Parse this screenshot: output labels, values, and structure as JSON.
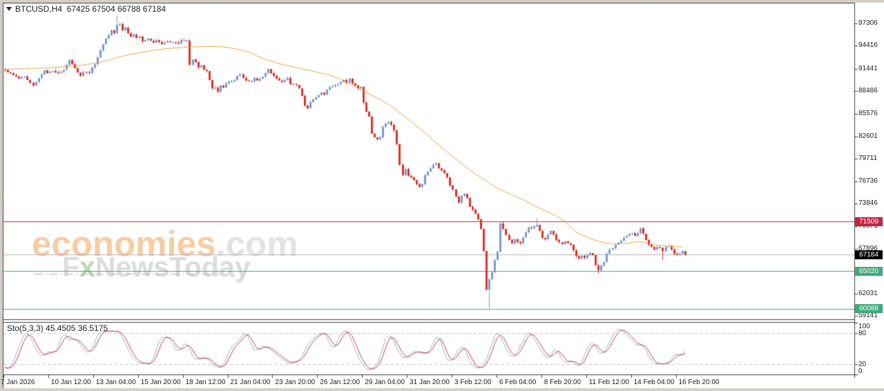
{
  "window": {
    "title_text": "BTCUSD,H4  67425 67504 66788 67184"
  },
  "indicator": {
    "label_text": "Sto(5,3,3) 45.4505 36.5175"
  },
  "watermark": {
    "brand": "economies",
    "brand_suffix": ".com",
    "tagline_prefix": "F",
    "tagline_x": "x",
    "tagline_rest": "NewsToday"
  },
  "price_axis": {
    "labels": [
      97306,
      94416,
      91441,
      88486,
      85576,
      82601,
      79711,
      76736,
      73846,
      70871,
      67896,
      62031,
      59141
    ],
    "tags": [
      {
        "price": 71509,
        "color": "#C72243"
      },
      {
        "price": 67184,
        "color": "#000000"
      },
      {
        "price": 65020,
        "color": "#3EA97B"
      },
      {
        "price": 60088,
        "color": "#3EA97B"
      }
    ]
  },
  "time_axis": {
    "labels": [
      "7 Jan 2026",
      "10 Jan 12:00",
      "13 Jan 04:00",
      "15 Jan 20:00",
      "18 Jan 12:00",
      "21 Jan 04:00",
      "23 Jan 20:00",
      "26 Jan 12:00",
      "29 Jan 04:00",
      "31 Jan 20:00",
      "3 Feb 12:00",
      "6 Feb 04:00",
      "8 Feb 20:00",
      "11 Feb 12:00",
      "14 Feb 04:00",
      "16 Feb 20:00"
    ]
  },
  "sub_axis": {
    "labels": [
      100,
      80,
      20,
      0
    ]
  },
  "colors": {
    "window_edge": "#D4D0C8",
    "frame": "#3C3C3C",
    "up_candle": "#7A99D0",
    "down_candle": "#DD3229",
    "ma_line": "#E8A23C",
    "stoch_k": "#8FAFD2",
    "stoch_d": "#C23B48",
    "stoch_levels": "#C6C6C6",
    "current_price_line": "#B4B4B4",
    "resistance_line": "#C72243",
    "support_line": "#3EA97B",
    "axis_text": "#1b1b1b",
    "watermark_underline": "#B5B5B5"
  },
  "chart_data": {
    "type": "candlestick",
    "symbol": "BTCUSD",
    "timeframe": "H4",
    "current_bar": {
      "open": 67425,
      "high": 67504,
      "low": 66788,
      "close": 67184
    },
    "ylim": [
      58730,
      99950
    ],
    "candle_count": 244,
    "close_path": [
      [
        0,
        91260
      ],
      [
        2,
        90810
      ],
      [
        5,
        90180
      ],
      [
        7,
        90450
      ],
      [
        9,
        89540
      ],
      [
        10,
        89270
      ],
      [
        12,
        90180
      ],
      [
        14,
        91260
      ],
      [
        15,
        90900
      ],
      [
        17,
        91170
      ],
      [
        19,
        90810
      ],
      [
        21,
        91260
      ],
      [
        23,
        92620
      ],
      [
        25,
        91530
      ],
      [
        26,
        90900
      ],
      [
        27,
        90450
      ],
      [
        28,
        91080
      ],
      [
        30,
        90810
      ],
      [
        31,
        91530
      ],
      [
        32,
        91990
      ],
      [
        33,
        92890
      ],
      [
        34,
        93800
      ],
      [
        36,
        95340
      ],
      [
        37,
        95880
      ],
      [
        38,
        96520
      ],
      [
        39,
        96060
      ],
      [
        40,
        97150
      ],
      [
        41,
        97330
      ],
      [
        42,
        96520
      ],
      [
        43,
        96790
      ],
      [
        44,
        96060
      ],
      [
        45,
        95610
      ],
      [
        46,
        95880
      ],
      [
        47,
        95430
      ],
      [
        48,
        95610
      ],
      [
        49,
        94980
      ],
      [
        51,
        95340
      ],
      [
        52,
        95160
      ],
      [
        53,
        94890
      ],
      [
        54,
        95160
      ],
      [
        56,
        94710
      ],
      [
        58,
        94980
      ],
      [
        60,
        94890
      ],
      [
        62,
        94710
      ],
      [
        63,
        95160
      ],
      [
        65,
        95070
      ],
      [
        66,
        91990
      ],
      [
        67,
        92620
      ],
      [
        68,
        92260
      ],
      [
        69,
        91530
      ],
      [
        70,
        91800
      ],
      [
        71,
        91260
      ],
      [
        72,
        91080
      ],
      [
        73,
        89900
      ],
      [
        74,
        88820
      ],
      [
        75,
        89000
      ],
      [
        76,
        88360
      ],
      [
        77,
        89270
      ],
      [
        78,
        89000
      ],
      [
        79,
        89540
      ],
      [
        80,
        89720
      ],
      [
        82,
        89900
      ],
      [
        83,
        90450
      ],
      [
        84,
        90630
      ],
      [
        85,
        90180
      ],
      [
        86,
        89900
      ],
      [
        88,
        89720
      ],
      [
        89,
        90180
      ],
      [
        90,
        89900
      ],
      [
        92,
        90450
      ],
      [
        94,
        91350
      ],
      [
        95,
        90810
      ],
      [
        97,
        90180
      ],
      [
        98,
        89900
      ],
      [
        99,
        89720
      ],
      [
        101,
        90180
      ],
      [
        102,
        89450
      ],
      [
        104,
        89270
      ],
      [
        105,
        88820
      ],
      [
        106,
        87910
      ],
      [
        107,
        86560
      ],
      [
        108,
        86290
      ],
      [
        109,
        87010
      ],
      [
        110,
        87460
      ],
      [
        111,
        87730
      ],
      [
        113,
        88360
      ],
      [
        114,
        88090
      ],
      [
        115,
        88630
      ],
      [
        116,
        89000
      ],
      [
        118,
        89270
      ],
      [
        119,
        89360
      ],
      [
        120,
        89720
      ],
      [
        121,
        89900
      ],
      [
        122,
        89540
      ],
      [
        123,
        90180
      ],
      [
        124,
        89540
      ],
      [
        125,
        89270
      ],
      [
        126,
        88820
      ],
      [
        127,
        89000
      ],
      [
        128,
        87010
      ],
      [
        129,
        85840
      ],
      [
        130,
        85210
      ],
      [
        131,
        82950
      ],
      [
        132,
        82500
      ],
      [
        133,
        82230
      ],
      [
        134,
        82500
      ],
      [
        135,
        83860
      ],
      [
        136,
        84310
      ],
      [
        137,
        84490
      ],
      [
        138,
        84130
      ],
      [
        139,
        83400
      ],
      [
        140,
        81600
      ],
      [
        141,
        78880
      ],
      [
        142,
        77530
      ],
      [
        143,
        78430
      ],
      [
        144,
        77530
      ],
      [
        145,
        77250
      ],
      [
        146,
        76890
      ],
      [
        147,
        76350
      ],
      [
        148,
        75980
      ],
      [
        149,
        76350
      ],
      [
        150,
        77530
      ],
      [
        151,
        77980
      ],
      [
        152,
        78430
      ],
      [
        153,
        78880
      ],
      [
        154,
        79060
      ],
      [
        155,
        78430
      ],
      [
        156,
        78160
      ],
      [
        157,
        77800
      ],
      [
        158,
        77250
      ],
      [
        159,
        76160
      ],
      [
        160,
        75710
      ],
      [
        161,
        74810
      ],
      [
        162,
        73900
      ],
      [
        163,
        74810
      ],
      [
        164,
        75080
      ],
      [
        165,
        74540
      ],
      [
        166,
        73450
      ],
      [
        167,
        73000
      ],
      [
        168,
        72540
      ],
      [
        169,
        71820
      ],
      [
        170,
        70500
      ],
      [
        171,
        67570
      ],
      [
        172,
        62590
      ],
      [
        173,
        63900
      ],
      [
        174,
        64850
      ],
      [
        175,
        66500
      ],
      [
        176,
        67600
      ],
      [
        177,
        71200
      ],
      [
        178,
        70500
      ],
      [
        179,
        69700
      ],
      [
        180,
        69100
      ],
      [
        181,
        68600
      ],
      [
        182,
        69100
      ],
      [
        184,
        68610
      ],
      [
        185,
        69380
      ],
      [
        187,
        70730
      ],
      [
        188,
        70550
      ],
      [
        189,
        70910
      ],
      [
        190,
        71000
      ],
      [
        191,
        70280
      ],
      [
        192,
        69380
      ],
      [
        193,
        69100
      ],
      [
        194,
        69830
      ],
      [
        195,
        70280
      ],
      [
        196,
        69830
      ],
      [
        197,
        69100
      ],
      [
        198,
        68740
      ],
      [
        199,
        68470
      ],
      [
        200,
        68920
      ],
      [
        202,
        68470
      ],
      [
        204,
        66930
      ],
      [
        205,
        66660
      ],
      [
        206,
        66930
      ],
      [
        207,
        66660
      ],
      [
        208,
        67110
      ],
      [
        209,
        67290
      ],
      [
        210,
        67110
      ],
      [
        211,
        65750
      ],
      [
        212,
        65120
      ],
      [
        213,
        65750
      ],
      [
        214,
        66200
      ],
      [
        215,
        67290
      ],
      [
        216,
        67840
      ],
      [
        217,
        68020
      ],
      [
        218,
        68470
      ],
      [
        219,
        68740
      ],
      [
        220,
        68920
      ],
      [
        221,
        69380
      ],
      [
        222,
        69650
      ],
      [
        223,
        69830
      ],
      [
        224,
        70010
      ],
      [
        225,
        69650
      ],
      [
        226,
        70010
      ],
      [
        227,
        70550
      ],
      [
        228,
        69830
      ],
      [
        229,
        69100
      ],
      [
        230,
        68470
      ],
      [
        231,
        68200
      ],
      [
        232,
        67840
      ],
      [
        233,
        68200
      ],
      [
        234,
        68020
      ],
      [
        235,
        67570
      ],
      [
        236,
        68200
      ],
      [
        237,
        68200
      ],
      [
        238,
        67840
      ],
      [
        239,
        67290
      ],
      [
        240,
        67110
      ],
      [
        241,
        67290
      ],
      [
        242,
        67570
      ],
      [
        243,
        67184
      ]
    ],
    "special_wicks": [
      {
        "i": 40,
        "high": 98330
      },
      {
        "i": 173,
        "low": 60140
      },
      {
        "i": 190,
        "high": 71880
      },
      {
        "i": 212,
        "low": 64650
      },
      {
        "i": 235,
        "low": 66480
      }
    ],
    "ma_path": [
      [
        0,
        91350
      ],
      [
        15,
        91530
      ],
      [
        28,
        91890
      ],
      [
        36,
        92440
      ],
      [
        43,
        93160
      ],
      [
        51,
        93710
      ],
      [
        58,
        94070
      ],
      [
        65,
        94250
      ],
      [
        73,
        94340
      ],
      [
        78,
        94300
      ],
      [
        83,
        93980
      ],
      [
        88,
        93530
      ],
      [
        91,
        92890
      ],
      [
        97,
        92170
      ],
      [
        107,
        91350
      ],
      [
        117,
        90540
      ],
      [
        127,
        88730
      ],
      [
        137,
        86830
      ],
      [
        147,
        84030
      ],
      [
        157,
        80850
      ],
      [
        167,
        77980
      ],
      [
        176,
        75800
      ],
      [
        184,
        74530
      ],
      [
        191,
        73230
      ],
      [
        199,
        71870
      ],
      [
        204,
        70060
      ],
      [
        211,
        68990
      ],
      [
        217,
        68540
      ],
      [
        222,
        68630
      ],
      [
        227,
        68900
      ],
      [
        232,
        68450
      ],
      [
        237,
        68270
      ],
      [
        242,
        68180
      ]
    ],
    "levels": [
      {
        "price": 71509,
        "color": "#C72243",
        "role": "resistance"
      },
      {
        "price": 67184,
        "color": "#B4B4B4",
        "role": "current-price"
      },
      {
        "price": 65020,
        "color": "#3EA97B",
        "role": "support"
      },
      {
        "price": 60088,
        "color": "#3EA97B",
        "role": "support"
      }
    ],
    "stochastic": {
      "label": "Sto(5,3,3)",
      "k_last": 45.4505,
      "d_last": 36.5175,
      "levels": [
        80,
        20
      ],
      "ylim": [
        0,
        100
      ],
      "k_path": [
        [
          0,
          15
        ],
        [
          2,
          10
        ],
        [
          7,
          83
        ],
        [
          9,
          77
        ],
        [
          12,
          38
        ],
        [
          14,
          36
        ],
        [
          16,
          48
        ],
        [
          18,
          38
        ],
        [
          21,
          86
        ],
        [
          23,
          62
        ],
        [
          25,
          71
        ],
        [
          26,
          64
        ],
        [
          29,
          41
        ],
        [
          31,
          44
        ],
        [
          34,
          87
        ],
        [
          35,
          85
        ],
        [
          38,
          82
        ],
        [
          41,
          84
        ],
        [
          45,
          38
        ],
        [
          47,
          22
        ],
        [
          51,
          21
        ],
        [
          53,
          24
        ],
        [
          55,
          70
        ],
        [
          58,
          73
        ],
        [
          59,
          72
        ],
        [
          61,
          46
        ],
        [
          62,
          41
        ],
        [
          65,
          67
        ],
        [
          67,
          31
        ],
        [
          69,
          29
        ],
        [
          71,
          35
        ],
        [
          73,
          30
        ],
        [
          74,
          18
        ],
        [
          77,
          13
        ],
        [
          78,
          14
        ],
        [
          79,
          27
        ],
        [
          81,
          57
        ],
        [
          83,
          60
        ],
        [
          86,
          86
        ],
        [
          89,
          44
        ],
        [
          90,
          42
        ],
        [
          91,
          55
        ],
        [
          94,
          52
        ],
        [
          97,
          40
        ],
        [
          101,
          24
        ],
        [
          102,
          18
        ],
        [
          104,
          28
        ],
        [
          105,
          22
        ],
        [
          108,
          57
        ],
        [
          112,
          80
        ],
        [
          115,
          78
        ],
        [
          117,
          42
        ],
        [
          121,
          88
        ],
        [
          123,
          80
        ],
        [
          126,
          33
        ],
        [
          129,
          10
        ],
        [
          130,
          5
        ],
        [
          134,
          25
        ],
        [
          135,
          57
        ],
        [
          137,
          81
        ],
        [
          140,
          55
        ],
        [
          141,
          38
        ],
        [
          143,
          29
        ],
        [
          145,
          41
        ],
        [
          147,
          44
        ],
        [
          151,
          38
        ],
        [
          155,
          84
        ],
        [
          156,
          54
        ],
        [
          158,
          25
        ],
        [
          159,
          21
        ],
        [
          163,
          57
        ],
        [
          164,
          55
        ],
        [
          167,
          15
        ],
        [
          169,
          13
        ],
        [
          171,
          14
        ],
        [
          176,
          90
        ],
        [
          178,
          60
        ],
        [
          181,
          34
        ],
        [
          182,
          30
        ],
        [
          187,
          87
        ],
        [
          190,
          60
        ],
        [
          193,
          36
        ],
        [
          194,
          24
        ],
        [
          197,
          54
        ],
        [
          199,
          30
        ],
        [
          200,
          19
        ],
        [
          203,
          31
        ],
        [
          205,
          8
        ],
        [
          208,
          52
        ],
        [
          210,
          65
        ],
        [
          213,
          33
        ],
        [
          219,
          90
        ],
        [
          221,
          85
        ],
        [
          226,
          54
        ],
        [
          228,
          60
        ],
        [
          231,
          25
        ],
        [
          232,
          21
        ],
        [
          234,
          20
        ],
        [
          237,
          22
        ],
        [
          239,
          35
        ],
        [
          240,
          46
        ],
        [
          241,
          40
        ],
        [
          242,
          27
        ],
        [
          243,
          45.45
        ]
      ]
    }
  }
}
